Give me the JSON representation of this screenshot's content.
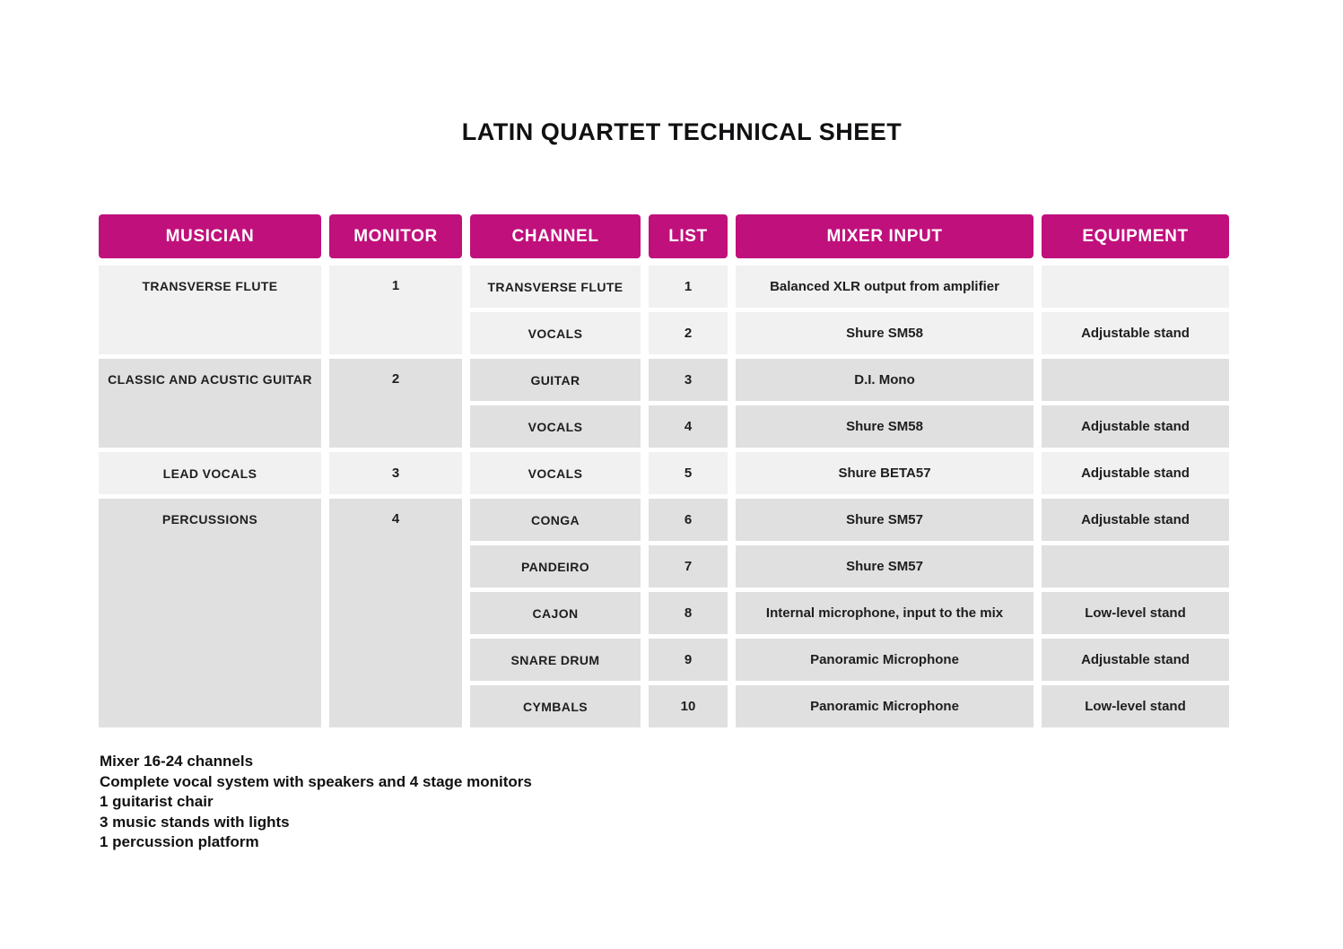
{
  "title": "LATIN QUARTET TECHNICAL SHEET",
  "colors": {
    "accent": "#c0107c",
    "row_light": "#f1f1f1",
    "row_dark": "#e0e0e0",
    "header_text": "#ffffff",
    "text": "#1e1e20"
  },
  "table": {
    "headers": {
      "musician": "MUSICIAN",
      "monitor": "MONITOR",
      "channel": "CHANNEL",
      "list": "LIST",
      "mixer_input": "MIXER INPUT",
      "equipment": "EQUIPMENT"
    },
    "groups": [
      {
        "musician": "TRANSVERSE FLUTE",
        "monitor": "1",
        "rows": [
          {
            "channel": "TRANSVERSE FLUTE",
            "list": "1",
            "mixer_input": "Balanced XLR output from amplifier",
            "equipment": ""
          },
          {
            "channel": "VOCALS",
            "list": "2",
            "mixer_input": "Shure SM58",
            "equipment": "Adjustable stand"
          }
        ]
      },
      {
        "musician": "CLASSIC AND ACUSTIC GUITAR",
        "monitor": "2",
        "rows": [
          {
            "channel": "GUITAR",
            "list": "3",
            "mixer_input": "D.I. Mono",
            "equipment": ""
          },
          {
            "channel": "VOCALS",
            "list": "4",
            "mixer_input": "Shure SM58",
            "equipment": "Adjustable stand"
          }
        ]
      },
      {
        "musician": "LEAD VOCALS",
        "monitor": "3",
        "rows": [
          {
            "channel": "VOCALS",
            "list": "5",
            "mixer_input": "Shure BETA57",
            "equipment": "Adjustable stand"
          }
        ]
      },
      {
        "musician": "PERCUSSIONS",
        "monitor": "4",
        "rows": [
          {
            "channel": "CONGA",
            "list": "6",
            "mixer_input": "Shure SM57",
            "equipment": "Adjustable stand"
          },
          {
            "channel": "PANDEIRO",
            "list": "7",
            "mixer_input": "Shure SM57",
            "equipment": ""
          },
          {
            "channel": "CAJON",
            "list": "8",
            "mixer_input": "Internal microphone, input to the mix",
            "equipment": "Low-level stand"
          },
          {
            "channel": "SNARE DRUM",
            "list": "9",
            "mixer_input": "Panoramic Microphone",
            "equipment": "Adjustable stand"
          },
          {
            "channel": "CYMBALS",
            "list": "10",
            "mixer_input": "Panoramic Microphone",
            "equipment": "Low-level stand"
          }
        ]
      }
    ]
  },
  "notes": {
    "line1": "Mixer 16-24 channels",
    "line2": "Complete vocal system with speakers and 4 stage monitors",
    "line3": "1 guitarist chair",
    "line4": "3 music stands with lights",
    "line5": "1 percussion platform"
  }
}
